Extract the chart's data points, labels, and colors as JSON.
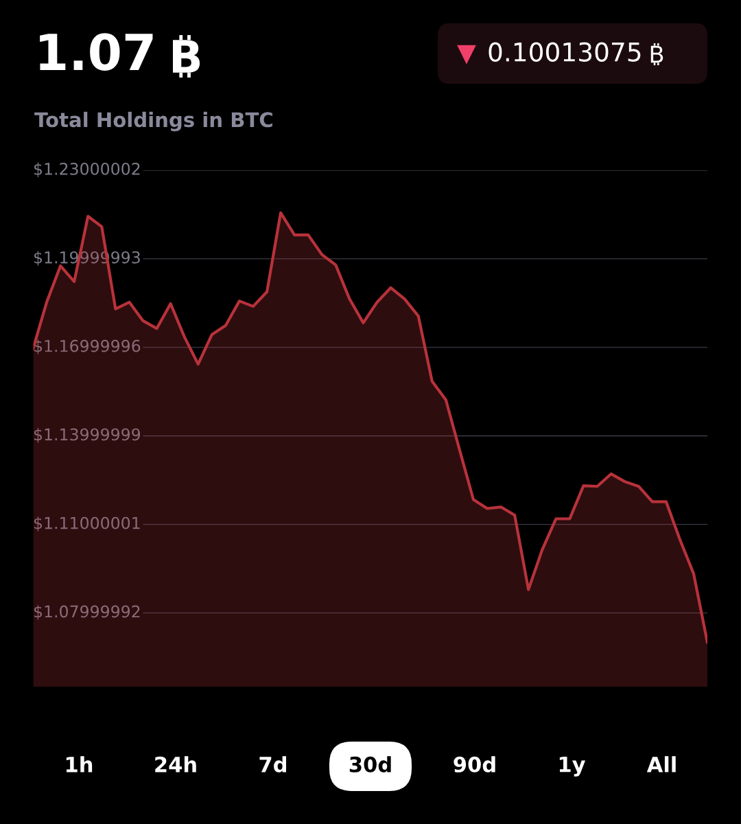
{
  "chart_data": {
    "type": "area",
    "title": "1.07",
    "subtitle": "Total Holdings in BTC",
    "annotations": [
      "▼ 0.10013075",
      "1h",
      "24h",
      "7d",
      "30d",
      "90d",
      "1y",
      "All"
    ],
    "categories": [
      null,
      null,
      null,
      null,
      null,
      null,
      null,
      null,
      null,
      null,
      null,
      null,
      null,
      null,
      null,
      null,
      null,
      null,
      null,
      null,
      null,
      null,
      null,
      null,
      null,
      null,
      null,
      null,
      null,
      null,
      null,
      null,
      null,
      null,
      null,
      null,
      null,
      null,
      null,
      null,
      null,
      null,
      null,
      null,
      null,
      null,
      null,
      null,
      null,
      null
    ],
    "series": [
      {
        "color": "#b8323a",
        "values": [
          1.1694,
          1.1853,
          1.1976,
          1.1923,
          1.2144,
          1.2109,
          1.183,
          1.1853,
          1.179,
          1.1764,
          1.1848,
          1.1736,
          1.1643,
          1.1743,
          1.1774,
          1.1857,
          1.1839,
          1.1888,
          1.2156,
          1.2081,
          1.2081,
          1.2014,
          1.1979,
          1.1864,
          1.1783,
          1.1853,
          1.1902,
          1.1864,
          1.1806,
          1.1585,
          1.1522,
          1.1352,
          1.1184,
          1.1154,
          1.1159,
          1.1131,
          1.0879,
          1.1014,
          1.1119,
          1.1119,
          1.1231,
          1.1229,
          1.1271,
          1.1245,
          1.1229,
          1.1177,
          1.1177,
          1.1049,
          1.0933,
          1.07
        ]
      }
    ],
    "ylim": [
      1.055,
      1.23000002
    ],
    "yticks": [
      {
        "value": 1.23000002,
        "label": "$1.23000002"
      },
      {
        "value": 1.19999993,
        "label": "$1.19999993"
      },
      {
        "value": 1.16999996,
        "label": "$1.16999996"
      },
      {
        "value": 1.13999999,
        "label": "$1.13999999"
      },
      {
        "value": 1.11000001,
        "label": "$1.11000001"
      },
      {
        "value": 1.07999992,
        "label": "$1.07999992"
      }
    ],
    "grid": "y",
    "tick_labels": "y",
    "legend": false
  }
}
